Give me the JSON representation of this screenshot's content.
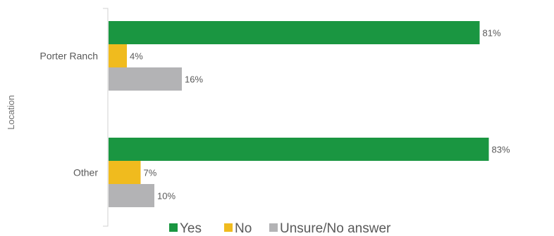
{
  "chart_data": {
    "type": "bar",
    "orientation": "horizontal",
    "ylabel": "Location",
    "xlabel": "",
    "categories": [
      "Porter Ranch",
      "Other"
    ],
    "series": [
      {
        "name": "Yes",
        "values": [
          81,
          83
        ],
        "labels": [
          "81%",
          "83%"
        ],
        "color": "#1a9641"
      },
      {
        "name": "No",
        "values": [
          4,
          7
        ],
        "labels": [
          "4%",
          "7%"
        ],
        "color": "#f0bb1e"
      },
      {
        "name": "Unsure/No answer",
        "values": [
          16,
          10
        ],
        "labels": [
          "16%",
          "10%"
        ],
        "color": "#b3b3b5"
      }
    ],
    "xlim": [
      0,
      100
    ],
    "value_unit": "%",
    "grid": false,
    "legend_position": "bottom"
  }
}
